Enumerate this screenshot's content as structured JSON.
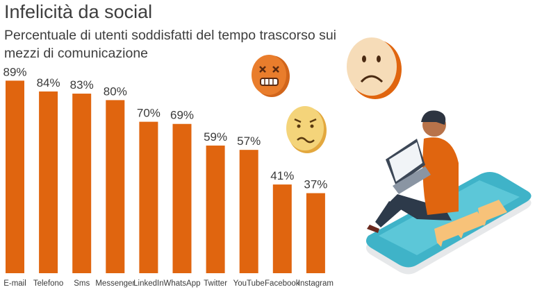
{
  "chart_data": {
    "type": "bar",
    "title": "Infelicità da social",
    "subtitle": "Percentuale di utenti soddisfatti del tempo trascorso sui mezzi di comunicazione",
    "categories": [
      "E-mail",
      "Telefono",
      "Sms",
      "Messenger",
      "LinkedIn",
      "WhatsApp",
      "Twitter",
      "YouTube",
      "Facebook",
      "Instagram"
    ],
    "values": [
      89,
      84,
      83,
      80,
      70,
      69,
      59,
      57,
      41,
      37
    ],
    "value_labels": [
      "89%",
      "84%",
      "83%",
      "80%",
      "70%",
      "69%",
      "59%",
      "57%",
      "41%",
      "37%"
    ],
    "ylim": [
      0,
      100
    ],
    "grid": false,
    "colors": {
      "bar": "#e0650f"
    }
  },
  "illustration": {
    "icons": [
      "angry-face-icon",
      "sad-face-icon",
      "worried-face-icon",
      "person-with-laptop-icon",
      "smartphone-icon",
      "chat-bubble-icon"
    ]
  }
}
